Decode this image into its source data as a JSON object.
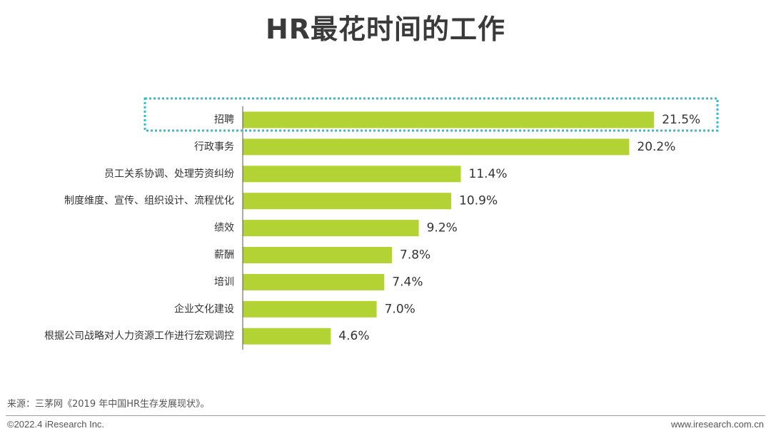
{
  "page": {
    "title": "HR最花时间的工作",
    "source": "来源：三茅网《2019 年中国HR生存发展现状》。",
    "copyright": "©2022.4 iResearch Inc.",
    "website": "www.iresearch.com.cn"
  },
  "colors": {
    "bar": "#b3d334",
    "highlight_border": "#29c0d6",
    "axis": "#555555"
  },
  "chart_data": {
    "type": "bar",
    "orientation": "horizontal",
    "title": "HR最花时间的工作",
    "categories": [
      "招聘",
      "行政事务",
      "员工关系协调、处理劳资纠纷",
      "制度维度、宣传、组织设计、流程优化",
      "绩效",
      "薪酬",
      "培训",
      "企业文化建设",
      "根据公司战略对人力资源工作进行宏观调控"
    ],
    "values": [
      21.5,
      20.2,
      11.4,
      10.9,
      9.2,
      7.8,
      7.4,
      7.0,
      4.6
    ],
    "value_labels": [
      "21.5%",
      "20.2%",
      "11.4%",
      "10.9%",
      "9.2%",
      "7.8%",
      "7.4%",
      "7.0%",
      "4.6%"
    ],
    "unit": "%",
    "highlighted_category": "招聘",
    "grid": false,
    "legend": "none"
  }
}
